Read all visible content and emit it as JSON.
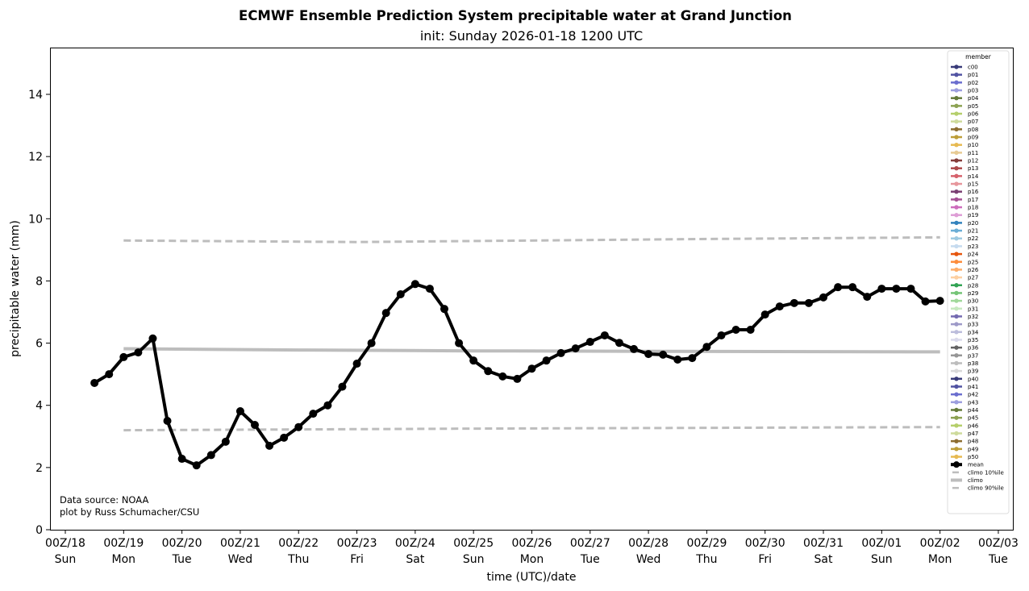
{
  "chart_data": {
    "type": "line",
    "title": "ECMWF Ensemble Prediction System precipitable water at Grand Junction",
    "subtitle": "init: Sunday 2026-01-18 1200 UTC",
    "xlabel": "time (UTC)/date",
    "ylabel": "precipitable water (mm)",
    "ylim": [
      0,
      15.5
    ],
    "xlim": [
      "2026-01-17 21:00",
      "2026-02-03 09:00"
    ],
    "grid": false,
    "legend_title": "member",
    "legend_placement": "right",
    "x_ticks": [
      {
        "time": "2026-01-18 00:00",
        "l1": "00Z/18",
        "l2": "Sun"
      },
      {
        "time": "2026-01-19 00:00",
        "l1": "00Z/19",
        "l2": "Mon"
      },
      {
        "time": "2026-01-20 00:00",
        "l1": "00Z/20",
        "l2": "Tue"
      },
      {
        "time": "2026-01-21 00:00",
        "l1": "00Z/21",
        "l2": "Wed"
      },
      {
        "time": "2026-01-22 00:00",
        "l1": "00Z/22",
        "l2": "Thu"
      },
      {
        "time": "2026-01-23 00:00",
        "l1": "00Z/23",
        "l2": "Fri"
      },
      {
        "time": "2026-01-24 00:00",
        "l1": "00Z/24",
        "l2": "Sat"
      },
      {
        "time": "2026-01-25 00:00",
        "l1": "00Z/25",
        "l2": "Sun"
      },
      {
        "time": "2026-01-26 00:00",
        "l1": "00Z/26",
        "l2": "Mon"
      },
      {
        "time": "2026-01-27 00:00",
        "l1": "00Z/27",
        "l2": "Tue"
      },
      {
        "time": "2026-01-28 00:00",
        "l1": "00Z/28",
        "l2": "Wed"
      },
      {
        "time": "2026-01-29 00:00",
        "l1": "00Z/29",
        "l2": "Thu"
      },
      {
        "time": "2026-01-30 00:00",
        "l1": "00Z/30",
        "l2": "Fri"
      },
      {
        "time": "2026-01-31 00:00",
        "l1": "00Z/31",
        "l2": "Sat"
      },
      {
        "time": "2026-02-01 00:00",
        "l1": "00Z/01",
        "l2": "Sun"
      },
      {
        "time": "2026-02-02 00:00",
        "l1": "00Z/02",
        "l2": "Mon"
      },
      {
        "time": "2026-02-03 00:00",
        "l1": "00Z/03",
        "l2": "Tue"
      }
    ],
    "y_ticks": [
      0,
      2,
      4,
      6,
      8,
      10,
      12,
      14
    ],
    "members": [
      {
        "name": "c00",
        "color": "#393b79"
      },
      {
        "name": "p01",
        "color": "#5254a3"
      },
      {
        "name": "p02",
        "color": "#6b6ecf"
      },
      {
        "name": "p03",
        "color": "#9c9ede"
      },
      {
        "name": "p04",
        "color": "#637939"
      },
      {
        "name": "p05",
        "color": "#8ca252"
      },
      {
        "name": "p06",
        "color": "#b5cf6b"
      },
      {
        "name": "p07",
        "color": "#cedb9c"
      },
      {
        "name": "p08",
        "color": "#8c6d31"
      },
      {
        "name": "p09",
        "color": "#bd9e39"
      },
      {
        "name": "p10",
        "color": "#e7ba52"
      },
      {
        "name": "p11",
        "color": "#e7cb94"
      },
      {
        "name": "p12",
        "color": "#843c39"
      },
      {
        "name": "p13",
        "color": "#ad494a"
      },
      {
        "name": "p14",
        "color": "#d6616b"
      },
      {
        "name": "p15",
        "color": "#e7969c"
      },
      {
        "name": "p16",
        "color": "#7b4173"
      },
      {
        "name": "p17",
        "color": "#a55194"
      },
      {
        "name": "p18",
        "color": "#ce6dbd"
      },
      {
        "name": "p19",
        "color": "#de9ed6"
      },
      {
        "name": "p20",
        "color": "#3182bd"
      },
      {
        "name": "p21",
        "color": "#6baed6"
      },
      {
        "name": "p22",
        "color": "#9ecae1"
      },
      {
        "name": "p23",
        "color": "#c6dbef"
      },
      {
        "name": "p24",
        "color": "#e6550d"
      },
      {
        "name": "p25",
        "color": "#fd8d3c"
      },
      {
        "name": "p26",
        "color": "#fdae6b"
      },
      {
        "name": "p27",
        "color": "#fdd0a2"
      },
      {
        "name": "p28",
        "color": "#31a354"
      },
      {
        "name": "p29",
        "color": "#74c476"
      },
      {
        "name": "p30",
        "color": "#a1d99b"
      },
      {
        "name": "p31",
        "color": "#c7e9c0"
      },
      {
        "name": "p32",
        "color": "#756bb1"
      },
      {
        "name": "p33",
        "color": "#9e9ac8"
      },
      {
        "name": "p34",
        "color": "#bcbddc"
      },
      {
        "name": "p35",
        "color": "#dadaeb"
      },
      {
        "name": "p36",
        "color": "#636363"
      },
      {
        "name": "p37",
        "color": "#969696"
      },
      {
        "name": "p38",
        "color": "#bdbdbd"
      },
      {
        "name": "p39",
        "color": "#d9d9d9"
      },
      {
        "name": "p40",
        "color": "#393b79"
      },
      {
        "name": "p41",
        "color": "#5254a3"
      },
      {
        "name": "p42",
        "color": "#6b6ecf"
      },
      {
        "name": "p43",
        "color": "#9c9ede"
      },
      {
        "name": "p44",
        "color": "#637939"
      },
      {
        "name": "p45",
        "color": "#8ca252"
      },
      {
        "name": "p46",
        "color": "#b5cf6b"
      },
      {
        "name": "p47",
        "color": "#cedb9c"
      },
      {
        "name": "p48",
        "color": "#8c6d31"
      },
      {
        "name": "p49",
        "color": "#bd9e39"
      },
      {
        "name": "p50",
        "color": "#e7ba52"
      }
    ],
    "mean": {
      "name": "mean",
      "color": "#000000",
      "x": [
        "2026-01-18 12:00",
        "2026-01-18 18:00",
        "2026-01-19 00:00",
        "2026-01-19 06:00",
        "2026-01-19 12:00",
        "2026-01-19 18:00",
        "2026-01-20 00:00",
        "2026-01-20 06:00",
        "2026-01-20 12:00",
        "2026-01-20 18:00",
        "2026-01-21 00:00",
        "2026-01-21 06:00",
        "2026-01-21 12:00",
        "2026-01-21 18:00",
        "2026-01-22 00:00",
        "2026-01-22 06:00",
        "2026-01-22 12:00",
        "2026-01-22 18:00",
        "2026-01-23 00:00",
        "2026-01-23 06:00",
        "2026-01-23 12:00",
        "2026-01-23 18:00",
        "2026-01-24 00:00",
        "2026-01-24 06:00",
        "2026-01-24 12:00",
        "2026-01-24 18:00",
        "2026-01-25 00:00",
        "2026-01-25 06:00",
        "2026-01-25 12:00",
        "2026-01-25 18:00",
        "2026-01-26 00:00",
        "2026-01-26 06:00",
        "2026-01-26 12:00",
        "2026-01-26 18:00",
        "2026-01-27 00:00",
        "2026-01-27 06:00",
        "2026-01-27 12:00",
        "2026-01-27 18:00",
        "2026-01-28 00:00",
        "2026-01-28 06:00",
        "2026-01-28 12:00",
        "2026-01-28 18:00",
        "2026-01-29 00:00",
        "2026-01-29 06:00",
        "2026-01-29 12:00",
        "2026-01-29 18:00",
        "2026-01-30 00:00",
        "2026-01-30 06:00",
        "2026-01-30 12:00",
        "2026-01-30 18:00",
        "2026-01-31 00:00",
        "2026-01-31 06:00",
        "2026-01-31 12:00",
        "2026-01-31 18:00",
        "2026-02-01 00:00",
        "2026-02-01 06:00",
        "2026-02-01 12:00",
        "2026-02-01 18:00",
        "2026-02-02 00:00"
      ],
      "y": [
        4.72,
        5.0,
        5.55,
        5.7,
        6.15,
        3.5,
        2.28,
        2.07,
        2.4,
        2.83,
        3.81,
        3.37,
        2.7,
        2.96,
        3.3,
        3.73,
        4.0,
        4.6,
        5.34,
        6.0,
        6.97,
        7.57,
        7.9,
        7.75,
        7.1,
        6.0,
        5.44,
        5.1,
        4.93,
        4.85,
        5.18,
        5.44,
        5.68,
        5.83,
        6.04,
        6.25,
        6.01,
        5.81,
        5.65,
        5.63,
        5.47,
        5.52,
        5.88,
        6.25,
        6.43,
        6.43,
        6.92,
        7.18,
        7.29,
        7.29,
        7.47,
        7.8,
        7.8,
        7.49,
        7.75,
        7.75,
        7.75,
        7.34,
        7.36
      ]
    },
    "climo": [
      {
        "name": "climo 10%ile",
        "color": "#bdbdbd",
        "style": "dashed",
        "x": [
          "2026-01-19 00:00",
          "2026-01-25 00:00",
          "2026-02-02 00:00"
        ],
        "y": [
          3.2,
          3.25,
          3.3
        ]
      },
      {
        "name": "climo",
        "color": "#bdbdbd",
        "style": "solid",
        "x": [
          "2026-01-19 00:00",
          "2026-01-22 00:00",
          "2026-01-25 00:00",
          "2026-02-02 00:00"
        ],
        "y": [
          5.82,
          5.78,
          5.75,
          5.72
        ]
      },
      {
        "name": "climo 90%ile",
        "color": "#bdbdbd",
        "style": "dashed",
        "x": [
          "2026-01-19 00:00",
          "2026-01-23 00:00",
          "2026-01-29 00:00",
          "2026-02-02 00:00"
        ],
        "y": [
          9.3,
          9.25,
          9.35,
          9.4
        ]
      }
    ],
    "annotation": [
      "Data source: NOAA",
      "plot by Russ Schumacher/CSU"
    ]
  }
}
